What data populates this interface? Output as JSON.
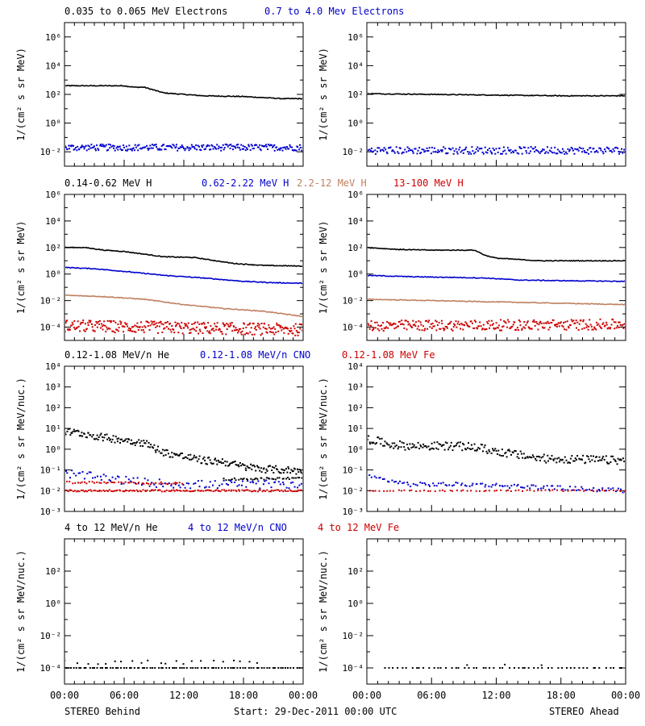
{
  "footer": {
    "left_label": "STEREO Behind",
    "center_label": "Start: 29-Dec-2011 00:00 UTC",
    "right_label": "STEREO Ahead"
  },
  "x_tick_labels": [
    "00:00",
    "06:00",
    "12:00",
    "18:00",
    "00:00"
  ],
  "chart_data": [
    {
      "type": "scatter",
      "row": 1,
      "header": [
        {
          "text": "0.035 to 0.065 MeV Electrons",
          "color": "#000000"
        },
        {
          "text": "0.7 to 4.0 Mev Electrons",
          "color": "#0000cc"
        }
      ],
      "ylabel": "1/(cm² s sr MeV)",
      "yscale": "log",
      "ylim_exp": [
        -3,
        7
      ],
      "ytick_exps": [
        -2,
        0,
        2,
        4,
        6
      ],
      "ytick_labels": [
        "10⁻²",
        "10⁰",
        "10²",
        "10⁴",
        "10⁶"
      ],
      "xlim_hours": [
        0,
        24
      ],
      "panels": [
        {
          "spacecraft": "STEREO Behind",
          "series": [
            {
              "color": "#000000",
              "style": "line",
              "x": [
                0,
                6,
                7,
                8,
                10,
                14,
                18,
                22,
                24
              ],
              "log_y": [
                2.6,
                2.6,
                2.5,
                2.5,
                2.1,
                1.9,
                1.85,
                1.7,
                1.7
              ]
            },
            {
              "color": "#0000cc",
              "style": "scatter",
              "x": [
                0,
                24
              ],
              "log_y": [
                -1.7,
                -1.7
              ],
              "spread": 0.22,
              "npts": 260
            }
          ]
        },
        {
          "spacecraft": "STEREO Ahead",
          "series": [
            {
              "color": "#000000",
              "style": "line",
              "x": [
                0,
                6,
                12,
                18,
                24
              ],
              "log_y": [
                2.05,
                2.0,
                1.95,
                1.9,
                1.9
              ]
            },
            {
              "color": "#0000cc",
              "style": "scatter",
              "x": [
                0,
                24
              ],
              "log_y": [
                -1.9,
                -1.9
              ],
              "spread": 0.25,
              "npts": 240
            }
          ]
        }
      ]
    },
    {
      "type": "scatter",
      "row": 2,
      "header": [
        {
          "text": "0.14-0.62 MeV H",
          "color": "#000000"
        },
        {
          "text": "0.62-2.22 MeV H",
          "color": "#0000cc"
        },
        {
          "text": "2.2-12 MeV H",
          "color": "#c08060"
        },
        {
          "text": "13-100 MeV H",
          "color": "#cc0000"
        }
      ],
      "ylabel": "1/(cm² s sr MeV)",
      "yscale": "log",
      "ylim_exp": [
        -5,
        6
      ],
      "ytick_exps": [
        -4,
        -2,
        0,
        2,
        4,
        6
      ],
      "ytick_labels": [
        "10⁻⁴",
        "10⁻²",
        "10⁰",
        "10²",
        "10⁴",
        "10⁶"
      ],
      "xlim_hours": [
        0,
        24
      ],
      "panels": [
        {
          "spacecraft": "STEREO Behind",
          "series": [
            {
              "color": "#000000",
              "style": "line",
              "x": [
                0,
                2,
                4,
                6,
                10,
                13,
                17,
                20,
                24
              ],
              "log_y": [
                2.0,
                2.0,
                1.8,
                1.7,
                1.3,
                1.25,
                0.8,
                0.65,
                0.6
              ]
            },
            {
              "color": "#0000cc",
              "style": "line",
              "x": [
                0,
                3,
                6,
                10,
                14,
                18,
                21,
                24
              ],
              "log_y": [
                0.5,
                0.4,
                0.2,
                -0.1,
                -0.3,
                -0.55,
                -0.65,
                -0.7
              ]
            },
            {
              "color": "#c08060",
              "style": "line",
              "x": [
                0,
                4,
                8,
                12,
                16,
                20,
                24
              ],
              "log_y": [
                -1.6,
                -1.7,
                -1.9,
                -2.3,
                -2.6,
                -2.8,
                -3.2
              ]
            },
            {
              "color": "#cc0000",
              "style": "scatter",
              "x": [
                0,
                24
              ],
              "log_y": [
                -3.9,
                -4.2
              ],
              "spread": 0.45,
              "npts": 320
            }
          ]
        },
        {
          "spacecraft": "STEREO Ahead",
          "series": [
            {
              "color": "#000000",
              "style": "line",
              "x": [
                0,
                3,
                6,
                10,
                11,
                12,
                16,
                20,
                24
              ],
              "log_y": [
                2.0,
                1.85,
                1.8,
                1.8,
                1.4,
                1.2,
                1.0,
                1.0,
                1.0
              ]
            },
            {
              "color": "#0000cc",
              "style": "line",
              "x": [
                0,
                4,
                8,
                11,
                14,
                18,
                24
              ],
              "log_y": [
                -0.1,
                -0.2,
                -0.25,
                -0.3,
                -0.45,
                -0.5,
                -0.55
              ]
            },
            {
              "color": "#c08060",
              "style": "line",
              "x": [
                0,
                6,
                12,
                18,
                24
              ],
              "log_y": [
                -1.9,
                -2.0,
                -2.1,
                -2.2,
                -2.3
              ]
            },
            {
              "color": "#cc0000",
              "style": "scatter",
              "x": [
                0,
                24
              ],
              "log_y": [
                -3.9,
                -3.8
              ],
              "spread": 0.4,
              "npts": 300
            }
          ]
        }
      ]
    },
    {
      "type": "scatter",
      "row": 3,
      "header": [
        {
          "text": "0.12-1.08 MeV/n He",
          "color": "#000000"
        },
        {
          "text": "0.12-1.08 MeV/n CNO",
          "color": "#0000cc"
        },
        {
          "text": "0.12-1.08 MeV Fe",
          "color": "#cc0000"
        }
      ],
      "ylabel": "1/(cm² s sr MeV/nuc.)",
      "yscale": "log",
      "ylim_exp": [
        -3,
        4
      ],
      "ytick_exps": [
        -3,
        -2,
        -1,
        0,
        1,
        2,
        3,
        4
      ],
      "ytick_labels": [
        "10⁻³",
        "10⁻²",
        "10⁻¹",
        "10⁰",
        "10¹",
        "10²",
        "10³",
        "10⁴"
      ],
      "xlim_hours": [
        0,
        24
      ],
      "panels": [
        {
          "spacecraft": "STEREO Behind",
          "series": [
            {
              "color": "#000000",
              "style": "scatter",
              "x": [
                0,
                2,
                4,
                6,
                8,
                10,
                12,
                14,
                16,
                18,
                20,
                22,
                24
              ],
              "log_y": [
                0.85,
                0.75,
                0.55,
                0.45,
                0.3,
                -0.15,
                -0.35,
                -0.55,
                -0.6,
                -0.85,
                -0.95,
                -1.0,
                -1.05
              ],
              "spread": 0.18,
              "npts": 230
            },
            {
              "color": "#000000",
              "style": "scatter",
              "x": [
                16,
                24
              ],
              "log_y": [
                -1.45,
                -1.4
              ],
              "spread": 0.05,
              "npts": 40
            },
            {
              "color": "#0000cc",
              "style": "scatter",
              "x": [
                0,
                4,
                8,
                12,
                24
              ],
              "log_y": [
                -1.15,
                -1.4,
                -1.6,
                -1.7,
                -1.7
              ],
              "spread": 0.2,
              "npts": 110
            },
            {
              "color": "#cc0000",
              "style": "scatter",
              "x": [
                0,
                24
              ],
              "log_y": [
                -2.0,
                -2.0
              ],
              "spread": 0.04,
              "npts": 150
            },
            {
              "color": "#cc0000",
              "style": "scatter",
              "x": [
                0,
                12
              ],
              "log_y": [
                -1.6,
                -1.65
              ],
              "spread": 0.05,
              "npts": 50
            }
          ]
        },
        {
          "spacecraft": "STEREO Ahead",
          "series": [
            {
              "color": "#000000",
              "style": "scatter",
              "x": [
                0,
                2,
                4,
                8,
                10,
                12,
                16,
                20,
                24
              ],
              "log_y": [
                0.5,
                0.25,
                0.15,
                0.15,
                0.1,
                -0.1,
                -0.45,
                -0.5,
                -0.55
              ],
              "spread": 0.2,
              "npts": 230
            },
            {
              "color": "#0000cc",
              "style": "scatter",
              "x": [
                0,
                4,
                10,
                24
              ],
              "log_y": [
                -1.3,
                -1.7,
                -1.7,
                -2.0
              ],
              "spread": 0.1,
              "npts": 120
            },
            {
              "color": "#cc0000",
              "style": "scatter",
              "x": [
                0,
                24
              ],
              "log_y": [
                -2.0,
                -2.0
              ],
              "spread": 0.03,
              "npts": 70
            }
          ]
        }
      ]
    },
    {
      "type": "scatter",
      "row": 4,
      "header": [
        {
          "text": "4 to 12 MeV/n He",
          "color": "#000000"
        },
        {
          "text": "4 to 12 MeV/n CNO",
          "color": "#0000cc"
        },
        {
          "text": "4 to 12 MeV Fe",
          "color": "#cc0000"
        }
      ],
      "ylabel": "1/(cm² s sr MeV/nuc.)",
      "yscale": "log",
      "ylim_exp": [
        -5,
        4
      ],
      "ytick_exps": [
        -4,
        -2,
        0,
        2
      ],
      "ytick_labels": [
        "10⁻⁴",
        "10⁻²",
        "10⁰",
        "10²"
      ],
      "xlim_hours": [
        0,
        24
      ],
      "panels": [
        {
          "spacecraft": "STEREO Behind",
          "series": [
            {
              "color": "#000000",
              "style": "scatter",
              "x": [
                0,
                24
              ],
              "log_y": [
                -4.0,
                -4.0
              ],
              "spread": 0.0,
              "npts": 90
            },
            {
              "color": "#000000",
              "style": "scatter",
              "x": [
                0,
                20
              ],
              "log_y": [
                -3.65,
                -3.65
              ],
              "spread": 0.12,
              "npts": 22
            }
          ]
        },
        {
          "spacecraft": "STEREO Ahead",
          "series": [
            {
              "color": "#000000",
              "style": "scatter",
              "x": [
                1.5,
                24
              ],
              "log_y": [
                -4.0,
                -4.0
              ],
              "spread": 0.0,
              "npts": 55
            },
            {
              "color": "#000000",
              "style": "scatter",
              "x": [
                8,
                17
              ],
              "log_y": [
                -3.8,
                -3.8
              ],
              "spread": 0.05,
              "npts": 3
            }
          ]
        }
      ]
    }
  ]
}
